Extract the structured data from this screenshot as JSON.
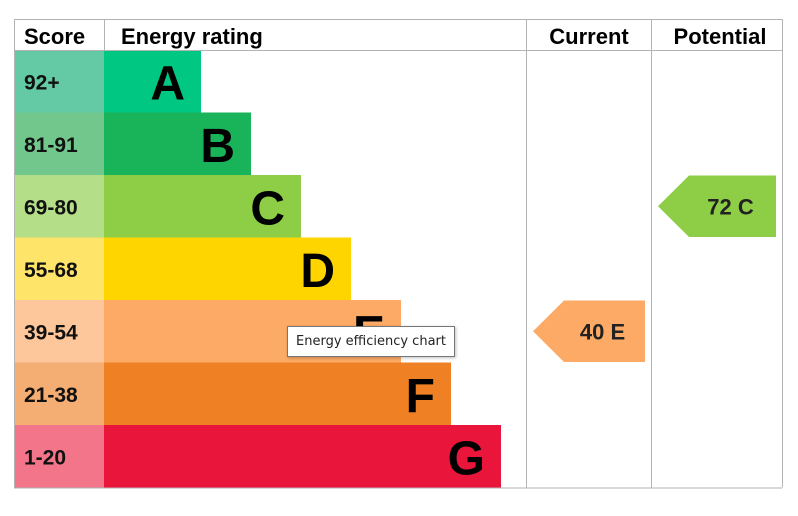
{
  "chart_data": {
    "type": "bar",
    "headers": {
      "score": "Score",
      "rating": "Energy rating",
      "current": "Current",
      "potential": "Potential"
    },
    "bands": [
      {
        "letter": "A",
        "range": "92+",
        "bar_color": "#00c781",
        "score_bg": "#63caa5"
      },
      {
        "letter": "B",
        "range": "81-91",
        "bar_color": "#19b459",
        "score_bg": "#72c78c"
      },
      {
        "letter": "C",
        "range": "69-80",
        "bar_color": "#8dce46",
        "score_bg": "#b4de87"
      },
      {
        "letter": "D",
        "range": "55-68",
        "bar_color": "#ffd500",
        "score_bg": "#ffe46a"
      },
      {
        "letter": "E",
        "range": "39-54",
        "bar_color": "#fcaa65",
        "score_bg": "#fdc69b"
      },
      {
        "letter": "F",
        "range": "21-38",
        "bar_color": "#ef8023",
        "score_bg": "#f4ad72"
      },
      {
        "letter": "G",
        "range": "1-20",
        "bar_color": "#e9153b",
        "score_bg": "#f2758a"
      }
    ],
    "current": {
      "value": 40,
      "band": "E",
      "label": "40  E"
    },
    "potential": {
      "value": 72,
      "band": "C",
      "label": "72  C"
    }
  },
  "tooltip": "Energy efficiency chart"
}
